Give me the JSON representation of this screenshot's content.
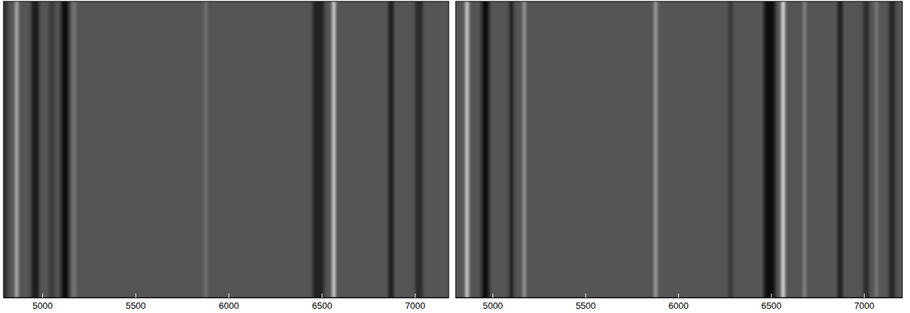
{
  "chart_data": [
    {
      "type": "spectrogram",
      "x": [
        4800,
        5050,
        4960,
        5120,
        6480,
        6870,
        7020,
        4861,
        5169,
        5876,
        6563
      ],
      "widths": [
        20,
        30,
        40,
        40,
        60,
        20,
        40,
        12,
        10,
        10,
        14
      ],
      "values": [
        -0.5,
        -0.3,
        -0.7,
        -0.8,
        -0.6,
        -0.9,
        -0.5,
        0.8,
        0.4,
        0.3,
        1.0
      ],
      "zlim": [
        -1,
        1
      ],
      "xlim": [
        4790,
        7180
      ],
      "xticks": [
        5000,
        5500,
        6000,
        6500,
        7000
      ]
    },
    {
      "type": "spectrogram",
      "x": [
        4960,
        5100,
        6280,
        6490,
        6870,
        7010,
        7150,
        4861,
        5169,
        5876,
        6563,
        6678,
        7065
      ],
      "widths": [
        40,
        20,
        15,
        60,
        20,
        30,
        30,
        14,
        10,
        10,
        16,
        10,
        10
      ],
      "values": [
        -0.8,
        -0.7,
        -0.5,
        -0.8,
        -0.9,
        -0.5,
        -0.6,
        1.0,
        0.7,
        0.8,
        1.0,
        0.5,
        0.4
      ],
      "zlim": [
        -1,
        1
      ],
      "xlim": [
        4800,
        7205
      ],
      "xticks": [
        5000,
        5500,
        6000,
        6500,
        7000
      ]
    }
  ]
}
